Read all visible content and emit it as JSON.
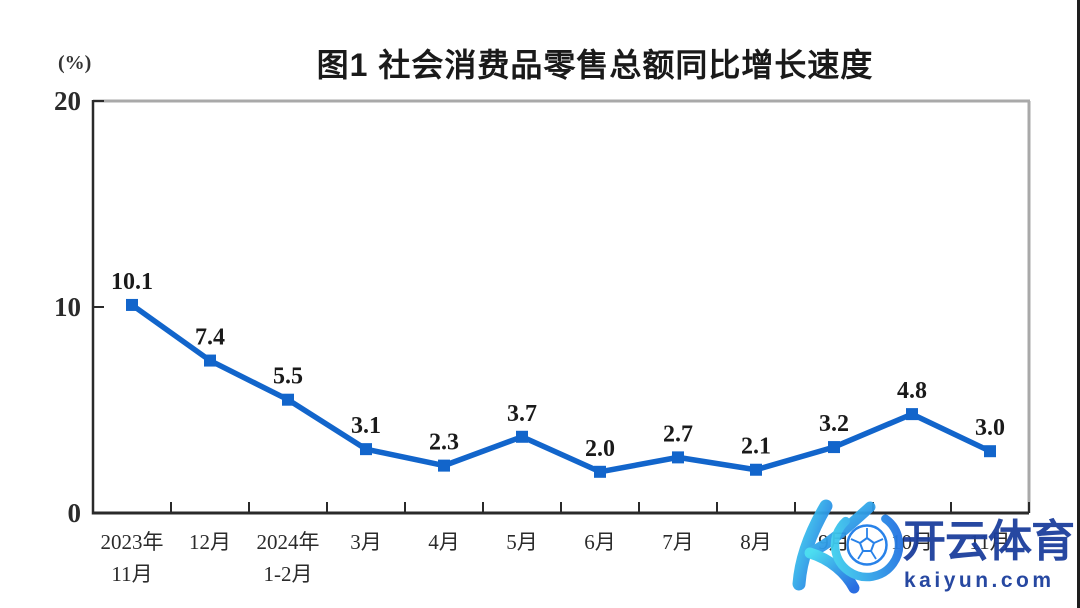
{
  "chart_data": {
    "type": "line",
    "title": "图1 社会消费品零售总额同比增长速度",
    "unit_label": "(%)",
    "categories": [
      [
        "2023年",
        "11月"
      ],
      [
        "12月"
      ],
      [
        "2024年",
        "1-2月"
      ],
      [
        "3月"
      ],
      [
        "4月"
      ],
      [
        "5月"
      ],
      [
        "6月"
      ],
      [
        "7月"
      ],
      [
        "8月"
      ],
      [
        "9月"
      ],
      [
        "10月"
      ],
      [
        "11月"
      ]
    ],
    "values": [
      10.1,
      7.4,
      5.5,
      3.1,
      2.3,
      3.7,
      2.0,
      2.7,
      2.1,
      3.2,
      4.8,
      3.0
    ],
    "ylim": [
      0,
      20
    ],
    "y_ticks": [
      0,
      10,
      20
    ],
    "grid": false,
    "legend": "none",
    "marker": "square",
    "colors": {
      "line": "#1265cb",
      "frame_dark": "#2a2a2a",
      "frame_light": "#a9a9a9",
      "value_label": "#1a1a1a"
    }
  },
  "watermark": {
    "logo_icon": "kaiyun-k-soccer-ball-logo",
    "brand": "开云体育",
    "domain": "kaiyun.com",
    "text_color": "#1c3f9d",
    "gradient_start": "#43dcf0",
    "gradient_end": "#1f66e0"
  }
}
